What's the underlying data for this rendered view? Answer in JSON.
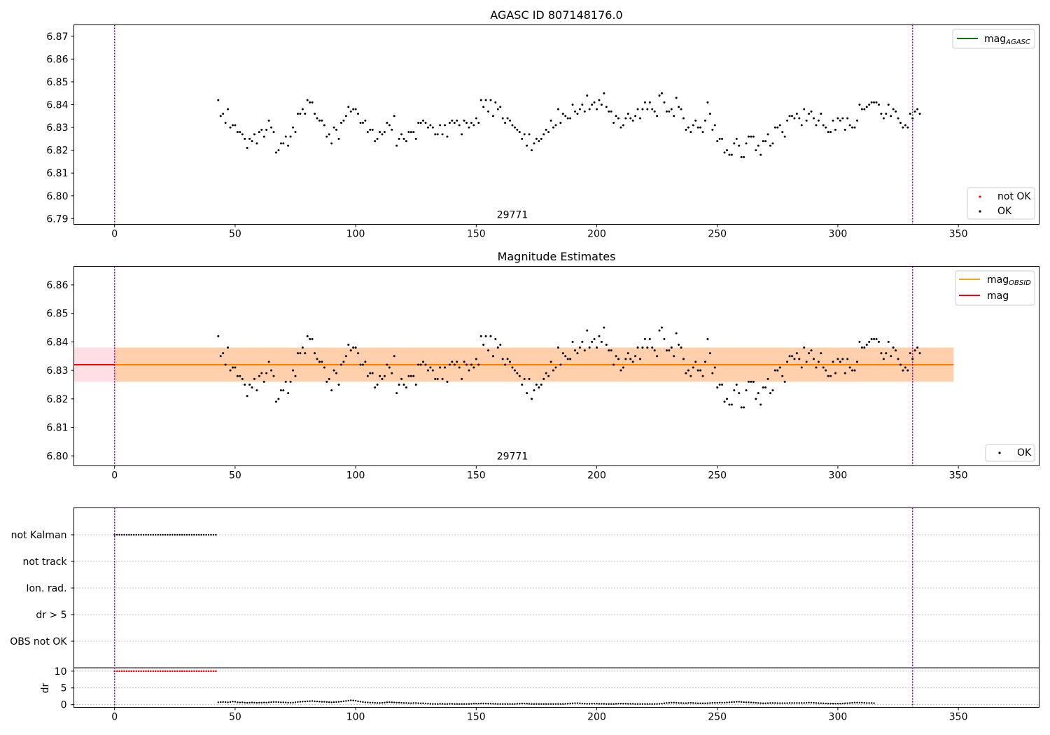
{
  "chart_data": [
    {
      "type": "scatter",
      "title": "AGASC ID 807148176.0",
      "xlim": [
        -16.9,
        383.5
      ],
      "ylim": [
        6.7875,
        6.875
      ],
      "xticks": [
        0,
        50,
        100,
        150,
        200,
        250,
        300,
        350
      ],
      "yticks": [
        6.79,
        6.8,
        6.81,
        6.82,
        6.83,
        6.84,
        6.85,
        6.86,
        6.87
      ],
      "ytick_labels": [
        "6.79",
        "6.80",
        "6.81",
        "6.82",
        "6.83",
        "6.84",
        "6.85",
        "6.86",
        "6.87"
      ],
      "grid": false,
      "vlines": [
        0,
        331
      ],
      "vline_color": "#7b00a0",
      "obsid_label": {
        "text": "29771",
        "x": 165
      },
      "legend_upper": {
        "placement": "upper right",
        "entries": [
          {
            "label": "mag",
            "sub": "AGASC",
            "color": "#008000",
            "kind": "line"
          }
        ]
      },
      "legend_lower": {
        "placement": "lower right",
        "entries": [
          {
            "label": "not OK",
            "color": "#ff0000",
            "kind": "dot"
          },
          {
            "label": "OK",
            "color": "#000000",
            "kind": "dot"
          }
        ]
      },
      "series": [
        {
          "name": "OK",
          "color": "#000000",
          "x_start": 43,
          "x_step": 1,
          "y": [
            6.842,
            6.835,
            6.836,
            6.832,
            6.838,
            6.83,
            6.831,
            6.831,
            6.828,
            6.828,
            6.827,
            6.825,
            6.821,
            6.825,
            6.824,
            6.827,
            6.823,
            6.828,
            6.829,
            6.826,
            6.829,
            6.833,
            6.83,
            6.828,
            6.819,
            6.82,
            6.823,
            6.823,
            6.826,
            6.822,
            6.826,
            6.83,
            6.828,
            6.836,
            6.836,
            6.838,
            6.836,
            6.842,
            6.841,
            6.841,
            6.836,
            6.834,
            6.833,
            6.833,
            6.831,
            6.826,
            6.827,
            6.823,
            6.83,
            6.829,
            6.825,
            6.832,
            6.833,
            6.835,
            6.839,
            6.837,
            6.838,
            6.838,
            6.836,
            6.832,
            6.832,
            6.833,
            6.828,
            6.829,
            6.829,
            6.824,
            6.825,
            6.828,
            6.827,
            6.828,
            6.832,
            6.831,
            6.829,
            6.835,
            6.822,
            6.825,
            6.827,
            6.825,
            6.824,
            6.828,
            6.828,
            6.828,
            6.825,
            6.832,
            6.832,
            6.833,
            6.832,
            6.83,
            6.831,
            6.83,
            6.827,
            6.827,
            6.831,
            6.827,
            6.831,
            6.826,
            6.832,
            6.833,
            6.832,
            6.833,
            6.831,
            6.827,
            6.833,
            6.832,
            6.83,
            6.832,
            6.831,
            6.834,
            6.832,
            6.842,
            6.839,
            6.842,
            6.837,
            6.842,
            6.835,
            6.841,
            6.838,
            6.839,
            6.834,
            6.832,
            6.834,
            6.833,
            6.831,
            6.83,
            6.829,
            6.828,
            6.825,
            6.827,
            6.822,
            6.827,
            6.82,
            6.823,
            6.825,
            6.824,
            6.825,
            6.827,
            6.829,
            6.828,
            6.833,
            6.83,
            6.831,
            6.838,
            6.832,
            6.836,
            6.835,
            6.834,
            6.834,
            6.84,
            6.837,
            6.836,
            6.838,
            6.84,
            6.837,
            6.844,
            6.838,
            6.84,
            6.841,
            6.838,
            6.842,
            6.84,
            6.845,
            6.839,
            6.837,
            6.837,
            6.832,
            6.835,
            6.834,
            6.83,
            6.831,
            6.834,
            6.836,
            6.834,
            6.833,
            6.835,
            6.838,
            6.834,
            6.838,
            6.841,
            6.838,
            6.841,
            6.838,
            6.837,
            6.835,
            6.844,
            6.845,
            6.841,
            6.837,
            6.837,
            6.838,
            6.835,
            6.843,
            6.839,
            6.838,
            6.834,
            6.829,
            6.83,
            6.828,
            6.831,
            6.833,
            6.83,
            6.83,
            6.828,
            6.833,
            6.841,
            6.836,
            6.829,
            6.831,
            6.824,
            6.825,
            6.825,
            6.819,
            6.82,
            6.818,
            6.818,
            6.823,
            6.825,
            6.822,
            6.817,
            6.817,
            6.823,
            6.826,
            6.826,
            6.826,
            6.82,
            6.822,
            6.818,
            6.824,
            6.824,
            6.827,
            6.822,
            6.823,
            6.83,
            6.83,
            6.831,
            6.828,
            6.826,
            6.833,
            6.835,
            6.835,
            6.834,
            6.836,
            6.834,
            6.831,
            6.838,
            6.833,
            6.836,
            6.837,
            6.834,
            6.831,
            6.833,
            6.836,
            6.831,
            6.83,
            6.828,
            6.828,
            6.833,
            6.829,
            6.834,
            6.833,
            6.834,
            6.829,
            6.834,
            6.831,
            6.83,
            6.83,
            6.833,
            6.84,
            6.838,
            6.838,
            6.839,
            6.84,
            6.841,
            6.841,
            6.841,
            6.84,
            6.836,
            6.834,
            6.836,
            6.84,
            6.835,
            6.838,
            6.837,
            6.834,
            6.832,
            6.83,
            6.831,
            6.83,
            6.836,
            6.834,
            6.837,
            6.838,
            6.836
          ]
        }
      ]
    },
    {
      "type": "scatter",
      "title": "Magnitude Estimates",
      "xlim": [
        -16.9,
        383.5
      ],
      "ylim": [
        6.7965,
        6.8665
      ],
      "xticks": [
        0,
        50,
        100,
        150,
        200,
        250,
        300,
        350
      ],
      "yticks": [
        6.8,
        6.81,
        6.82,
        6.83,
        6.84,
        6.85,
        6.86
      ],
      "ytick_labels": [
        "6.80",
        "6.81",
        "6.82",
        "6.83",
        "6.84",
        "6.85",
        "6.86"
      ],
      "grid": false,
      "vlines": [
        0,
        331
      ],
      "vline_color": "#7b00a0",
      "obsid_label": {
        "text": "29771",
        "x": 165
      },
      "bands": [
        {
          "x0": -16.9,
          "x1": 348,
          "y0": 6.826,
          "y1": 6.838,
          "color": "#ffc0cb",
          "opacity": 0.5
        },
        {
          "x0": 0,
          "x1": 348,
          "y0": 6.826,
          "y1": 6.838,
          "color": "#ffa500",
          "opacity": 0.25
        }
      ],
      "hlines": [
        {
          "x0": -16.9,
          "x1": 348,
          "y": 6.832,
          "color": "#ff0000",
          "width": 2
        },
        {
          "x0": 0,
          "x1": 348,
          "y": 6.832,
          "color": "#ffa500",
          "width": 1.5
        }
      ],
      "legend_upper": {
        "placement": "upper right",
        "entries": [
          {
            "label": "mag",
            "sub": "OBSID",
            "color": "#ffa500",
            "kind": "line"
          },
          {
            "label": "mag",
            "sub": "",
            "color": "#ff0000",
            "kind": "line"
          }
        ]
      },
      "legend_lower": {
        "placement": "lower right",
        "entries": [
          {
            "label": "OK",
            "color": "#000000",
            "kind": "dot"
          }
        ]
      },
      "series": [
        {
          "name": "OK",
          "color": "#000000",
          "same_as_panel": 0
        }
      ]
    },
    {
      "type": "scatter",
      "xlim": [
        -16.9,
        383.5
      ],
      "flag_labels": [
        "not Kalman",
        "not track",
        "Ion. rad.",
        "dr > 5",
        "OBS not OK"
      ],
      "flags": {
        "not Kalman": {
          "x0": 0,
          "x1": 42
        },
        "not track": null,
        "Ion. rad.": null,
        "dr > 5": null,
        "OBS not OK": null
      },
      "vlines": [
        0,
        331
      ],
      "vline_color": "#7b00a0",
      "grid": "horizontal dotted",
      "ylabel": "dr",
      "dr": {
        "ylim": [
          -0.8,
          11
        ],
        "yticks": [
          0,
          5,
          10
        ],
        "red_x0": 0,
        "red_x1": 42,
        "red_value": 10,
        "black_x0": 43,
        "black_x1": 331,
        "black_values": [
          0.7,
          0.75,
          0.8,
          0.75,
          0.7,
          0.8,
          0.9,
          0.85,
          0.7,
          0.65,
          0.7,
          0.6,
          0.55,
          0.6,
          0.65,
          0.6,
          0.55,
          0.6,
          0.6,
          0.65,
          0.6,
          0.7,
          0.75,
          0.8,
          0.8,
          0.75,
          0.7,
          0.7,
          0.65,
          0.6,
          0.6,
          0.6,
          0.7,
          0.8,
          0.85,
          0.9,
          0.95,
          1.0,
          1.05,
          1.1,
          1.0,
          0.95,
          0.9,
          0.85,
          0.85,
          0.8,
          0.75,
          0.7,
          0.75,
          0.8,
          0.85,
          0.9,
          1.0,
          1.1,
          1.2,
          1.3,
          1.25,
          1.2,
          1.0,
          0.9,
          0.8,
          0.7,
          0.65,
          0.6,
          0.6,
          0.55,
          0.5,
          0.5,
          0.55,
          0.6,
          0.7,
          0.75,
          0.7,
          0.65,
          0.6,
          0.6,
          0.55,
          0.5,
          0.5,
          0.45,
          0.45,
          0.5,
          0.5,
          0.45,
          0.4,
          0.4,
          0.35,
          0.3,
          0.25,
          0.2,
          0.2,
          0.2,
          0.25,
          0.25,
          0.2,
          0.2,
          0.25,
          0.25,
          0.2,
          0.2,
          0.2,
          0.2,
          0.2,
          0.2,
          0.2,
          0.25,
          0.3,
          0.3,
          0.3,
          0.35,
          0.35,
          0.35,
          0.3,
          0.3,
          0.25,
          0.25,
          0.2,
          0.2,
          0.2,
          0.2,
          0.2,
          0.2,
          0.2,
          0.2,
          0.25,
          0.3,
          0.35,
          0.35,
          0.3,
          0.25,
          0.2,
          0.2,
          0.2,
          0.2,
          0.2,
          0.2,
          0.2,
          0.2,
          0.2,
          0.2,
          0.2,
          0.2,
          0.2,
          0.2,
          0.25,
          0.3,
          0.35,
          0.4,
          0.45,
          0.45,
          0.4,
          0.35,
          0.3,
          0.25,
          0.25,
          0.3,
          0.3,
          0.3,
          0.25,
          0.25,
          0.25,
          0.2,
          0.2,
          0.2,
          0.2,
          0.25,
          0.3,
          0.3,
          0.3,
          0.3,
          0.25,
          0.25,
          0.25,
          0.2,
          0.2,
          0.2,
          0.2,
          0.2,
          0.2,
          0.2,
          0.2,
          0.2,
          0.2,
          0.25,
          0.3,
          0.4,
          0.5,
          0.55,
          0.6,
          0.6,
          0.55,
          0.5,
          0.5,
          0.45,
          0.45,
          0.5,
          0.55,
          0.5,
          0.45,
          0.4,
          0.4,
          0.4,
          0.4,
          0.45,
          0.5,
          0.55,
          0.55,
          0.55,
          0.6,
          0.6,
          0.6,
          0.65,
          0.7,
          0.75,
          0.8,
          0.85,
          0.85,
          0.8,
          0.75,
          0.7,
          0.7,
          0.65,
          0.6,
          0.55,
          0.5,
          0.45,
          0.4,
          0.4,
          0.45,
          0.5,
          0.5,
          0.5,
          0.45,
          0.45,
          0.45,
          0.45,
          0.45,
          0.5,
          0.5,
          0.5,
          0.5,
          0.5,
          0.5,
          0.5,
          0.55,
          0.6,
          0.6,
          0.55,
          0.5,
          0.45,
          0.45,
          0.4,
          0.35,
          0.3,
          0.3,
          0.3,
          0.3,
          0.3,
          0.3,
          0.35,
          0.4,
          0.45,
          0.5,
          0.55,
          0.6,
          0.6,
          0.6,
          0.6,
          0.55,
          0.5,
          0.5,
          0.5,
          0.45
        ]
      }
    }
  ]
}
